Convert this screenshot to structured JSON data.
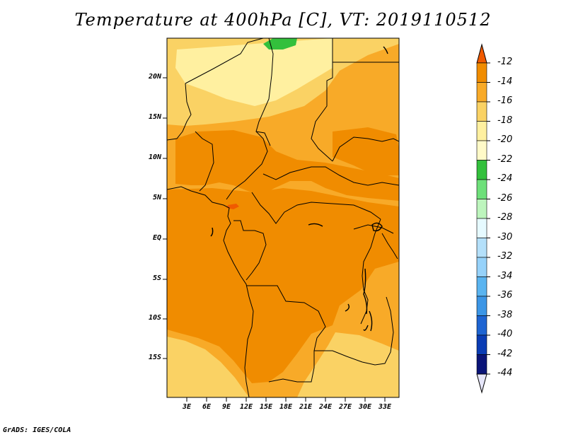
{
  "title": "Temperature at 400hPa [C], VT: 2019110512",
  "credit": "GrADS: IGES/COLA",
  "map": {
    "lat_labels": [
      "20N",
      "15N",
      "10N",
      "5N",
      "EQ",
      "5S",
      "10S",
      "15S"
    ],
    "lon_labels": [
      "3E",
      "6E",
      "9E",
      "12E",
      "15E",
      "18E",
      "21E",
      "24E",
      "27E",
      "30E",
      "33E"
    ]
  },
  "colorbar": {
    "labels": [
      "-12",
      "-14",
      "-16",
      "-18",
      "-20",
      "-22",
      "-24",
      "-26",
      "-28",
      "-30",
      "-32",
      "-34",
      "-36",
      "-38",
      "-40",
      "-42",
      "-44"
    ],
    "colors": [
      "#f05a00",
      "#f08c00",
      "#f8aa28",
      "#fad264",
      "#fff0a0",
      "#fffac8",
      "#33c03c",
      "#6ee07a",
      "#bdf5bd",
      "#e6faff",
      "#b4e0fa",
      "#96d2fa",
      "#5ab4f0",
      "#3c96e6",
      "#1e64d2",
      "#0a3cb4",
      "#0a1478"
    ],
    "top_arrow_color": "#f05a00",
    "bottom_arrow_color": "#e6e6fa"
  },
  "field_colors": {
    "level_16_14": "#f8aa28",
    "level_18_16": "#fad264",
    "level_14_12": "#f08c00",
    "level_20_18": "#fff0a0",
    "level_24_22": "#33c03c",
    "level_12": "#f05a00"
  }
}
